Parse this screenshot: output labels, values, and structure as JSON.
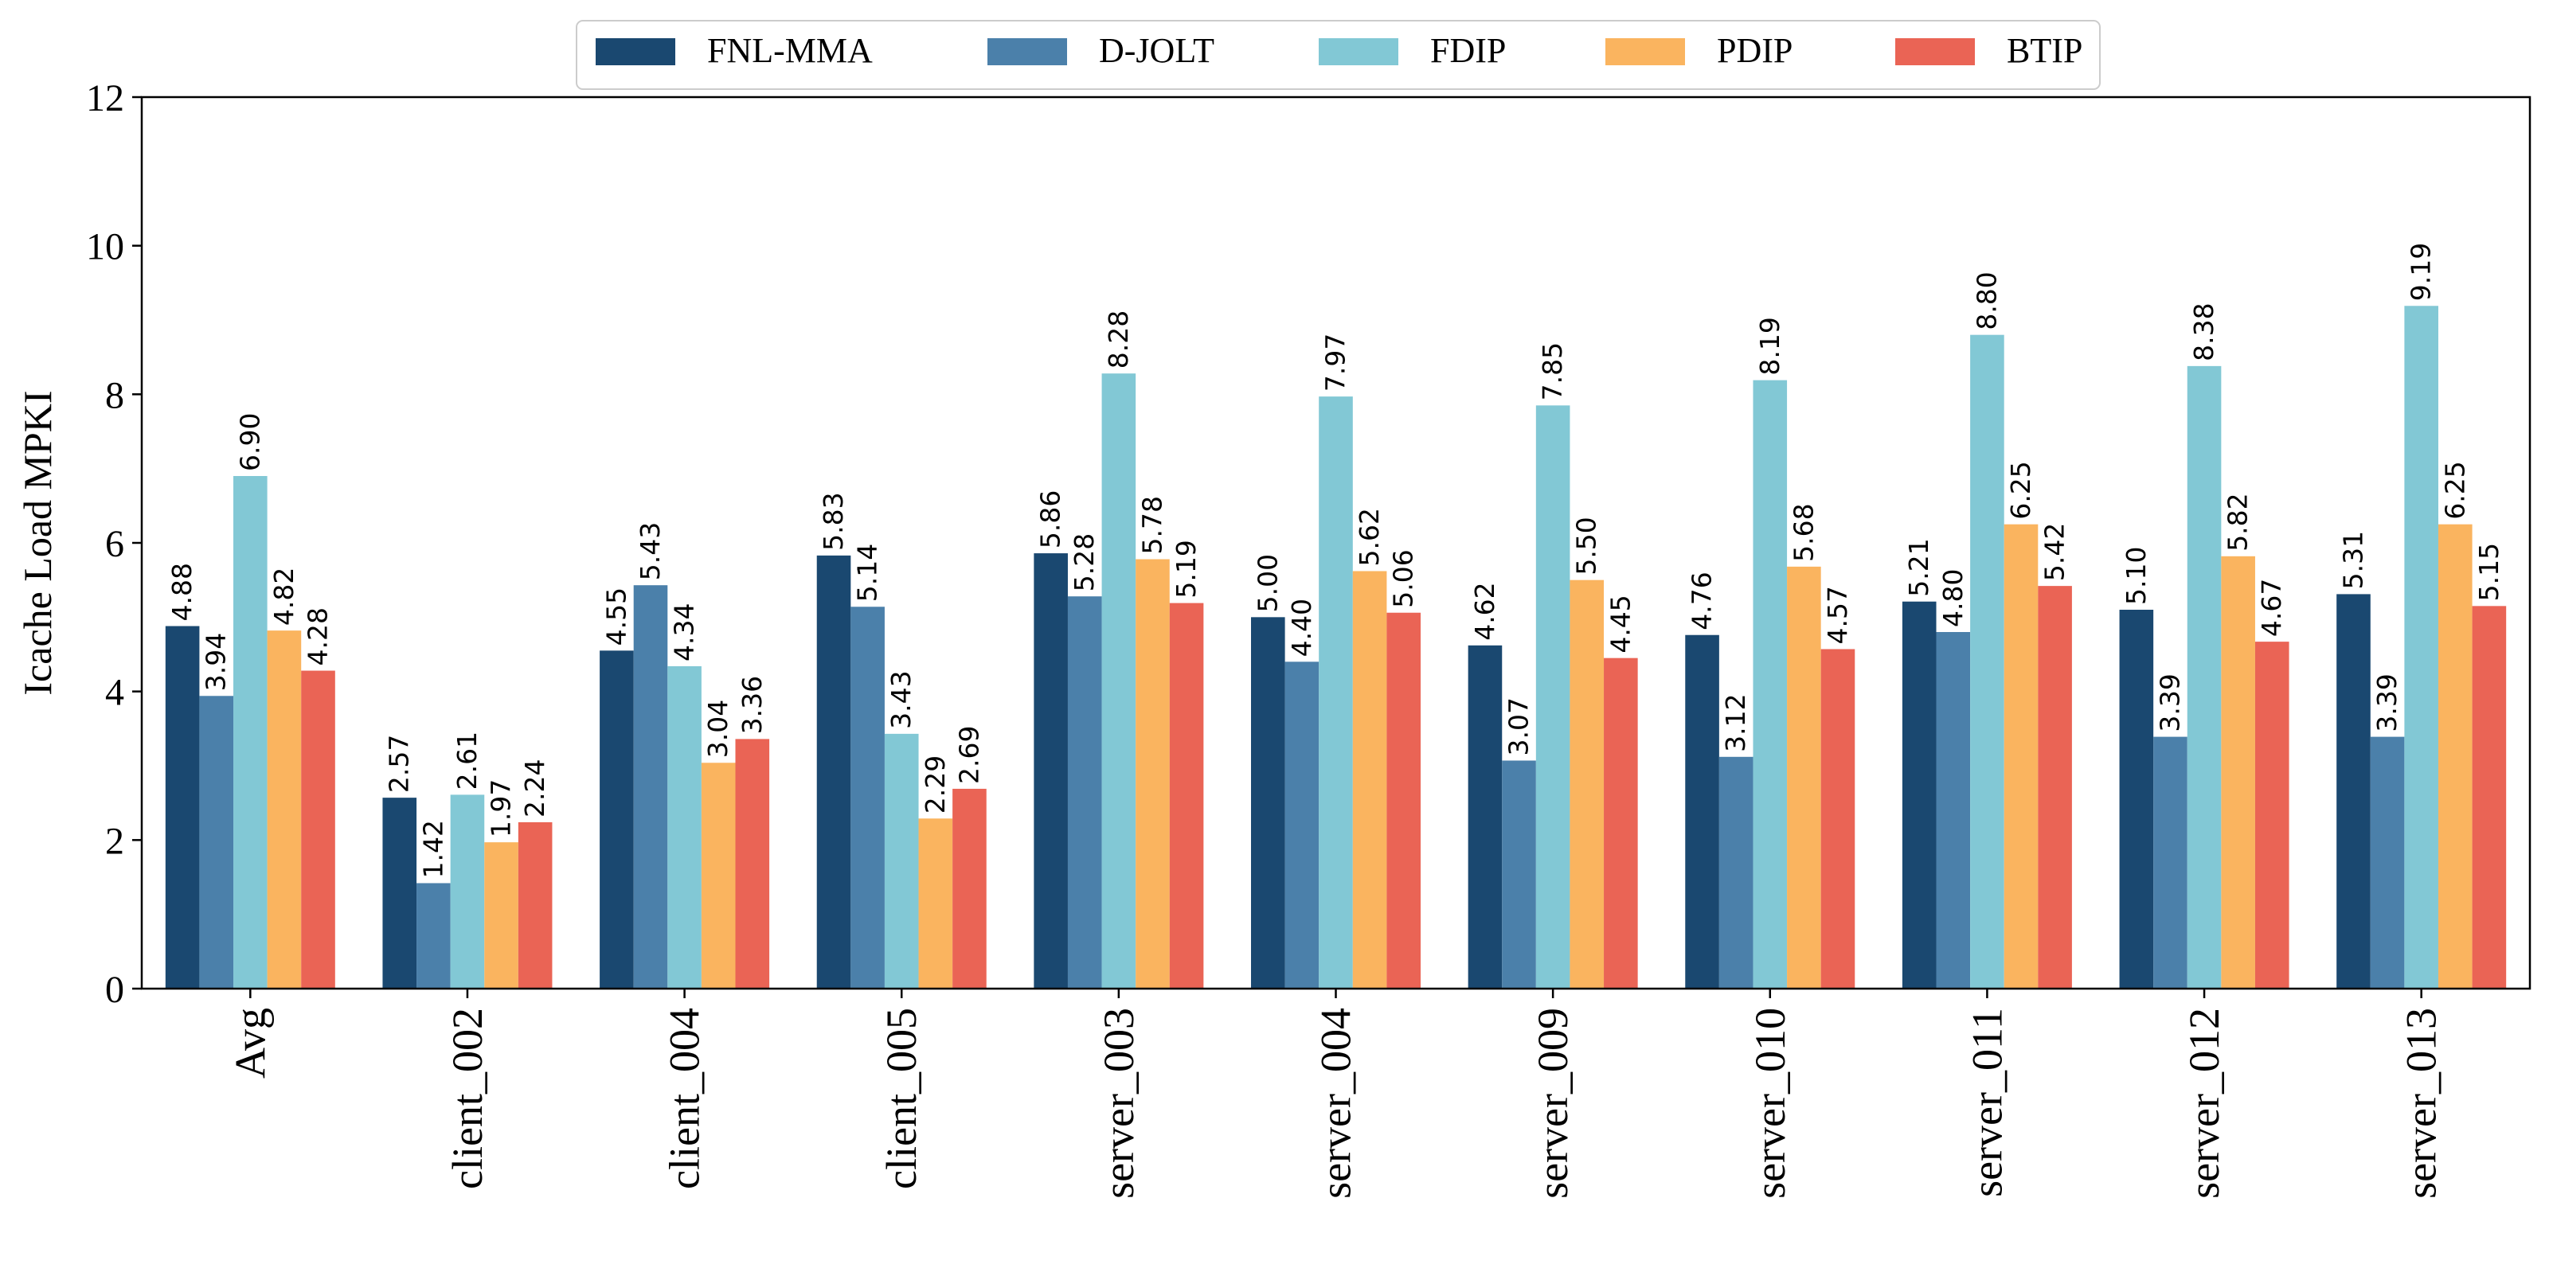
{
  "chart_data": {
    "type": "bar",
    "title": "",
    "xlabel": "",
    "ylabel": "Icache Load MPKI",
    "ylim": [
      0,
      12
    ],
    "yticks": [
      0,
      2,
      4,
      6,
      8,
      10,
      12
    ],
    "ytick_labels": [
      "0",
      "2",
      "4",
      "6",
      "8",
      "10",
      "12"
    ],
    "legend_position": "top-center",
    "grid": false,
    "categories": [
      "Avg",
      "client_002",
      "client_004",
      "client_005",
      "server_003",
      "server_004",
      "server_009",
      "server_010",
      "server_011",
      "server_012",
      "server_013"
    ],
    "series": [
      {
        "name": "FNL-MMA",
        "color": "#1a4870",
        "values": [
          4.88,
          2.57,
          4.55,
          5.83,
          5.86,
          5.0,
          4.62,
          4.76,
          5.21,
          5.1,
          5.31
        ],
        "labels": [
          "4.88",
          "2.57",
          "4.55",
          "5.83",
          "5.86",
          "5.00",
          "4.62",
          "4.76",
          "5.21",
          "5.10",
          "5.31"
        ]
      },
      {
        "name": "D-JOLT",
        "color": "#4b80aa",
        "values": [
          3.94,
          1.42,
          5.43,
          5.14,
          5.28,
          4.4,
          3.07,
          3.12,
          4.8,
          3.39,
          3.39
        ],
        "labels": [
          "3.94",
          "1.42",
          "5.43",
          "5.14",
          "5.28",
          "4.40",
          "3.07",
          "3.12",
          "4.80",
          "3.39",
          "3.39"
        ]
      },
      {
        "name": "FDIP",
        "color": "#82c8d5",
        "values": [
          6.9,
          2.61,
          4.34,
          3.43,
          8.28,
          7.97,
          7.85,
          8.19,
          8.8,
          8.38,
          9.19
        ],
        "labels": [
          "6.90",
          "2.61",
          "4.34",
          "3.43",
          "8.28",
          "7.97",
          "7.85",
          "8.19",
          "8.80",
          "8.38",
          "9.19"
        ]
      },
      {
        "name": "PDIP",
        "color": "#fab45f",
        "values": [
          4.82,
          1.97,
          3.04,
          2.29,
          5.78,
          5.62,
          5.5,
          5.68,
          6.25,
          5.82,
          6.25
        ],
        "labels": [
          "4.82",
          "1.97",
          "3.04",
          "2.29",
          "5.78",
          "5.62",
          "5.50",
          "5.68",
          "6.25",
          "5.82",
          "6.25"
        ]
      },
      {
        "name": "BTIP",
        "color": "#ea6455",
        "values": [
          4.28,
          2.24,
          3.36,
          2.69,
          5.19,
          5.06,
          4.45,
          4.57,
          5.42,
          4.67,
          5.15
        ],
        "labels": [
          "4.28",
          "2.24",
          "3.36",
          "2.69",
          "5.19",
          "5.06",
          "4.45",
          "4.57",
          "5.42",
          "4.67",
          "5.15"
        ]
      }
    ]
  }
}
